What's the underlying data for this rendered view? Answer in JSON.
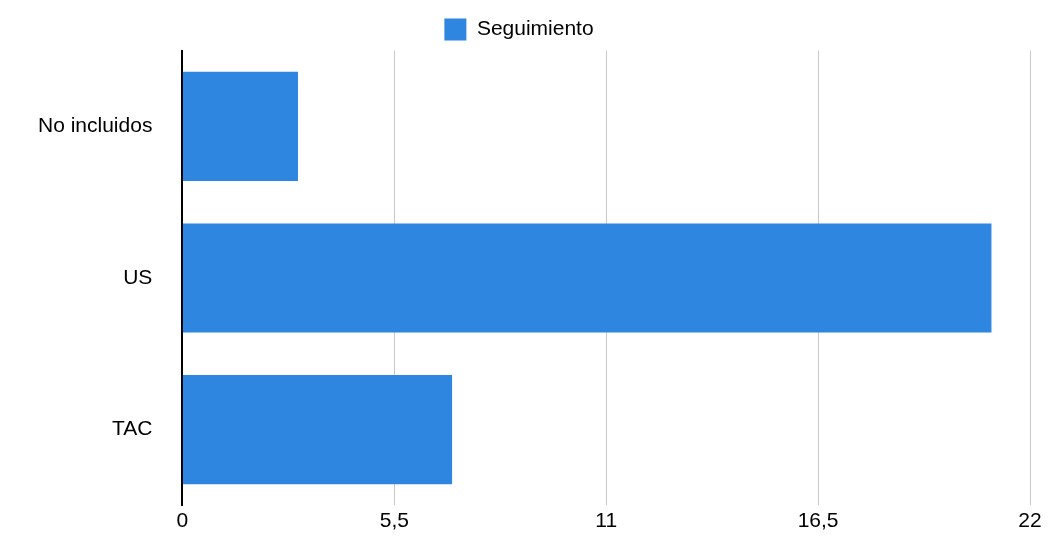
{
  "chart_data": {
    "type": "bar",
    "orientation": "horizontal",
    "categories": [
      "No incluidos",
      "US",
      "TAC"
    ],
    "series": [
      {
        "name": "Seguimiento",
        "color": "#2f86e0",
        "values": [
          3,
          21,
          7
        ]
      }
    ],
    "xlim": [
      0,
      22
    ],
    "xticks": [
      0,
      {
        "value": 5.5,
        "label": "5,5"
      },
      11,
      {
        "value": 16.5,
        "label": "16,5"
      },
      22
    ],
    "grid": "x",
    "legend": "top"
  }
}
